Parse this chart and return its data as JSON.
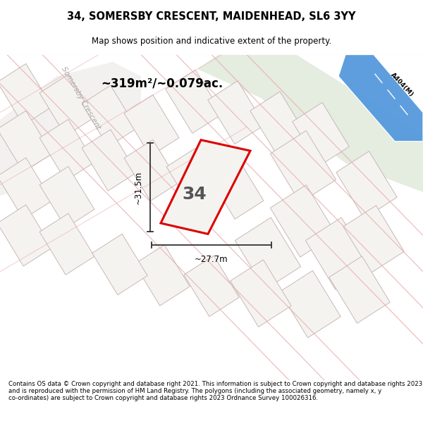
{
  "title_line1": "34, SOMERSBY CRESCENT, MAIDENHEAD, SL6 3YY",
  "title_line2": "Map shows position and indicative extent of the property.",
  "footer_text": "Contains OS data © Crown copyright and database right 2021. This information is subject to Crown copyright and database rights 2023 and is reproduced with the permission of HM Land Registry. The polygons (including the associated geometry, namely x, y co-ordinates) are subject to Crown copyright and database rights 2023 Ordnance Survey 100026316.",
  "area_label": "~319m²/~0.079ac.",
  "plot_number": "34",
  "dim_width": "~27.7m",
  "dim_height": "~31.5m",
  "road_label": "Somersby Crescent",
  "road_code": "A404(M)",
  "map_bg": "#ffffff",
  "plot_fill": "#f0eeeb",
  "red_line_color": "#dd0000",
  "pink_line_color": "#e8a0a0",
  "plot_line_color": "#c8b8b8",
  "green_area_color": "#d0ddc8",
  "blue_road_color": "#5599dd",
  "title_bg": "#ffffff",
  "footer_bg": "#ffffff",
  "dim_color": "#333333",
  "road_label_color": "#aaaaaa",
  "number_color": "#555555"
}
